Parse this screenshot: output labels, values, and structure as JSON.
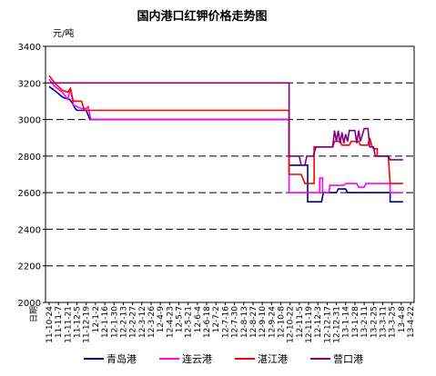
{
  "chart_data": {
    "type": "line",
    "title": "国内港口红钾价格走势图",
    "ylabel": "元/吨",
    "xlabel": "日期",
    "ylim": [
      2000,
      3400
    ],
    "yticks": [
      2000,
      2200,
      2400,
      2600,
      2800,
      3000,
      3200,
      3400
    ],
    "grid": "horizontal dashed",
    "legend_position": "bottom",
    "categories": [
      "11-10-24",
      "11-11-7",
      "11-11-21",
      "11-12-5",
      "11-12-19",
      "12-1-2",
      "12-1-16",
      "12-1-30",
      "12-2-13",
      "12-2-27",
      "12-3-12",
      "12-3-26",
      "12-4-9",
      "12-4-23",
      "12-5-7",
      "12-5-21",
      "12-6-4",
      "12-6-18",
      "12-7-2",
      "12-7-16",
      "12-7-30",
      "12-8-13",
      "12-8-27",
      "12-9-10",
      "12-9-24",
      "12-10-8",
      "12-10-22",
      "12-11-5",
      "12-11-19",
      "12-12-3",
      "12-12-17",
      "12-12-31",
      "13-1-14",
      "13-1-28",
      "13-2-11",
      "13-2-25",
      "13-3-11",
      "13-3-25",
      "13-4-8",
      "13-4-22"
    ],
    "series": [
      {
        "name": "青岛港",
        "color": "#000080",
        "points": [
          [
            0,
            3180
          ],
          [
            0.8,
            3150
          ],
          [
            1.5,
            3120
          ],
          [
            2.2,
            3110
          ],
          [
            2.5,
            3090
          ],
          [
            2.8,
            3060
          ],
          [
            3.0,
            3050
          ],
          [
            4.0,
            3050
          ],
          [
            4.4,
            3000
          ],
          [
            25.9,
            3000
          ],
          [
            25.9,
            2750
          ],
          [
            27.0,
            2750
          ],
          [
            27.9,
            2750
          ],
          [
            27.9,
            2550
          ],
          [
            29.4,
            2550
          ],
          [
            29.6,
            2600
          ],
          [
            31.0,
            2600
          ],
          [
            31.2,
            2620
          ],
          [
            32.0,
            2620
          ],
          [
            32.2,
            2600
          ],
          [
            36.8,
            2600
          ],
          [
            36.8,
            2550
          ],
          [
            38.2,
            2550
          ]
        ]
      },
      {
        "name": "连云港",
        "color": "#ff00ff",
        "points": [
          [
            0,
            3220
          ],
          [
            0.6,
            3180
          ],
          [
            1.4,
            3150
          ],
          [
            2.0,
            3110
          ],
          [
            2.3,
            3170
          ],
          [
            2.6,
            3080
          ],
          [
            3.0,
            3070
          ],
          [
            3.5,
            3060
          ],
          [
            4.0,
            3060
          ],
          [
            4.2,
            3070
          ],
          [
            4.5,
            3000
          ],
          [
            25.9,
            3000
          ],
          [
            25.9,
            2600
          ],
          [
            29.2,
            2600
          ],
          [
            29.2,
            2680
          ],
          [
            29.5,
            2680
          ],
          [
            29.5,
            2600
          ],
          [
            30.2,
            2600
          ],
          [
            30.3,
            2640
          ],
          [
            31.8,
            2640
          ],
          [
            32.0,
            2650
          ],
          [
            33.2,
            2650
          ],
          [
            33.4,
            2630
          ],
          [
            34.0,
            2630
          ],
          [
            34.2,
            2650
          ],
          [
            36.8,
            2650
          ],
          [
            36.8,
            2600
          ],
          [
            38.2,
            2600
          ]
        ]
      },
      {
        "name": "湛江港",
        "color": "#ff0000",
        "points": [
          [
            0,
            3240
          ],
          [
            0.6,
            3200
          ],
          [
            1.4,
            3160
          ],
          [
            2.0,
            3150
          ],
          [
            2.3,
            3170
          ],
          [
            2.6,
            3100
          ],
          [
            3.5,
            3100
          ],
          [
            3.8,
            3050
          ],
          [
            25.9,
            3050
          ],
          [
            25.9,
            2700
          ],
          [
            27.2,
            2700
          ],
          [
            27.6,
            2650
          ],
          [
            28.6,
            2650
          ],
          [
            28.6,
            2850
          ],
          [
            30.6,
            2850
          ],
          [
            30.8,
            2880
          ],
          [
            31.4,
            2880
          ],
          [
            31.6,
            2860
          ],
          [
            32.4,
            2860
          ],
          [
            32.6,
            2880
          ],
          [
            33.4,
            2880
          ],
          [
            33.6,
            2860
          ],
          [
            34.4,
            2860
          ],
          [
            34.6,
            2900
          ],
          [
            34.8,
            2860
          ],
          [
            35.0,
            2840
          ],
          [
            35.4,
            2840
          ],
          [
            35.4,
            2800
          ],
          [
            36.6,
            2800
          ],
          [
            36.8,
            2650
          ],
          [
            38.2,
            2650
          ]
        ]
      },
      {
        "name": "营口港",
        "color": "#800080",
        "points": [
          [
            0,
            3200
          ],
          [
            25.9,
            3200
          ],
          [
            25.9,
            2800
          ],
          [
            27.0,
            2800
          ],
          [
            27.2,
            2750
          ],
          [
            27.6,
            2750
          ],
          [
            27.8,
            2800
          ],
          [
            28.5,
            2800
          ],
          [
            28.8,
            2850
          ],
          [
            30.6,
            2850
          ],
          [
            30.8,
            2940
          ],
          [
            31.0,
            2880
          ],
          [
            31.2,
            2940
          ],
          [
            31.4,
            2870
          ],
          [
            31.6,
            2930
          ],
          [
            31.8,
            2870
          ],
          [
            32.0,
            2920
          ],
          [
            32.2,
            2880
          ],
          [
            32.4,
            2940
          ],
          [
            33.0,
            2940
          ],
          [
            33.2,
            2870
          ],
          [
            33.4,
            2940
          ],
          [
            33.6,
            2880
          ],
          [
            34.0,
            2950
          ],
          [
            34.4,
            2950
          ],
          [
            34.6,
            2850
          ],
          [
            35.0,
            2850
          ],
          [
            35.2,
            2800
          ],
          [
            36.6,
            2800
          ],
          [
            36.8,
            2780
          ],
          [
            38.2,
            2780
          ]
        ]
      }
    ]
  }
}
